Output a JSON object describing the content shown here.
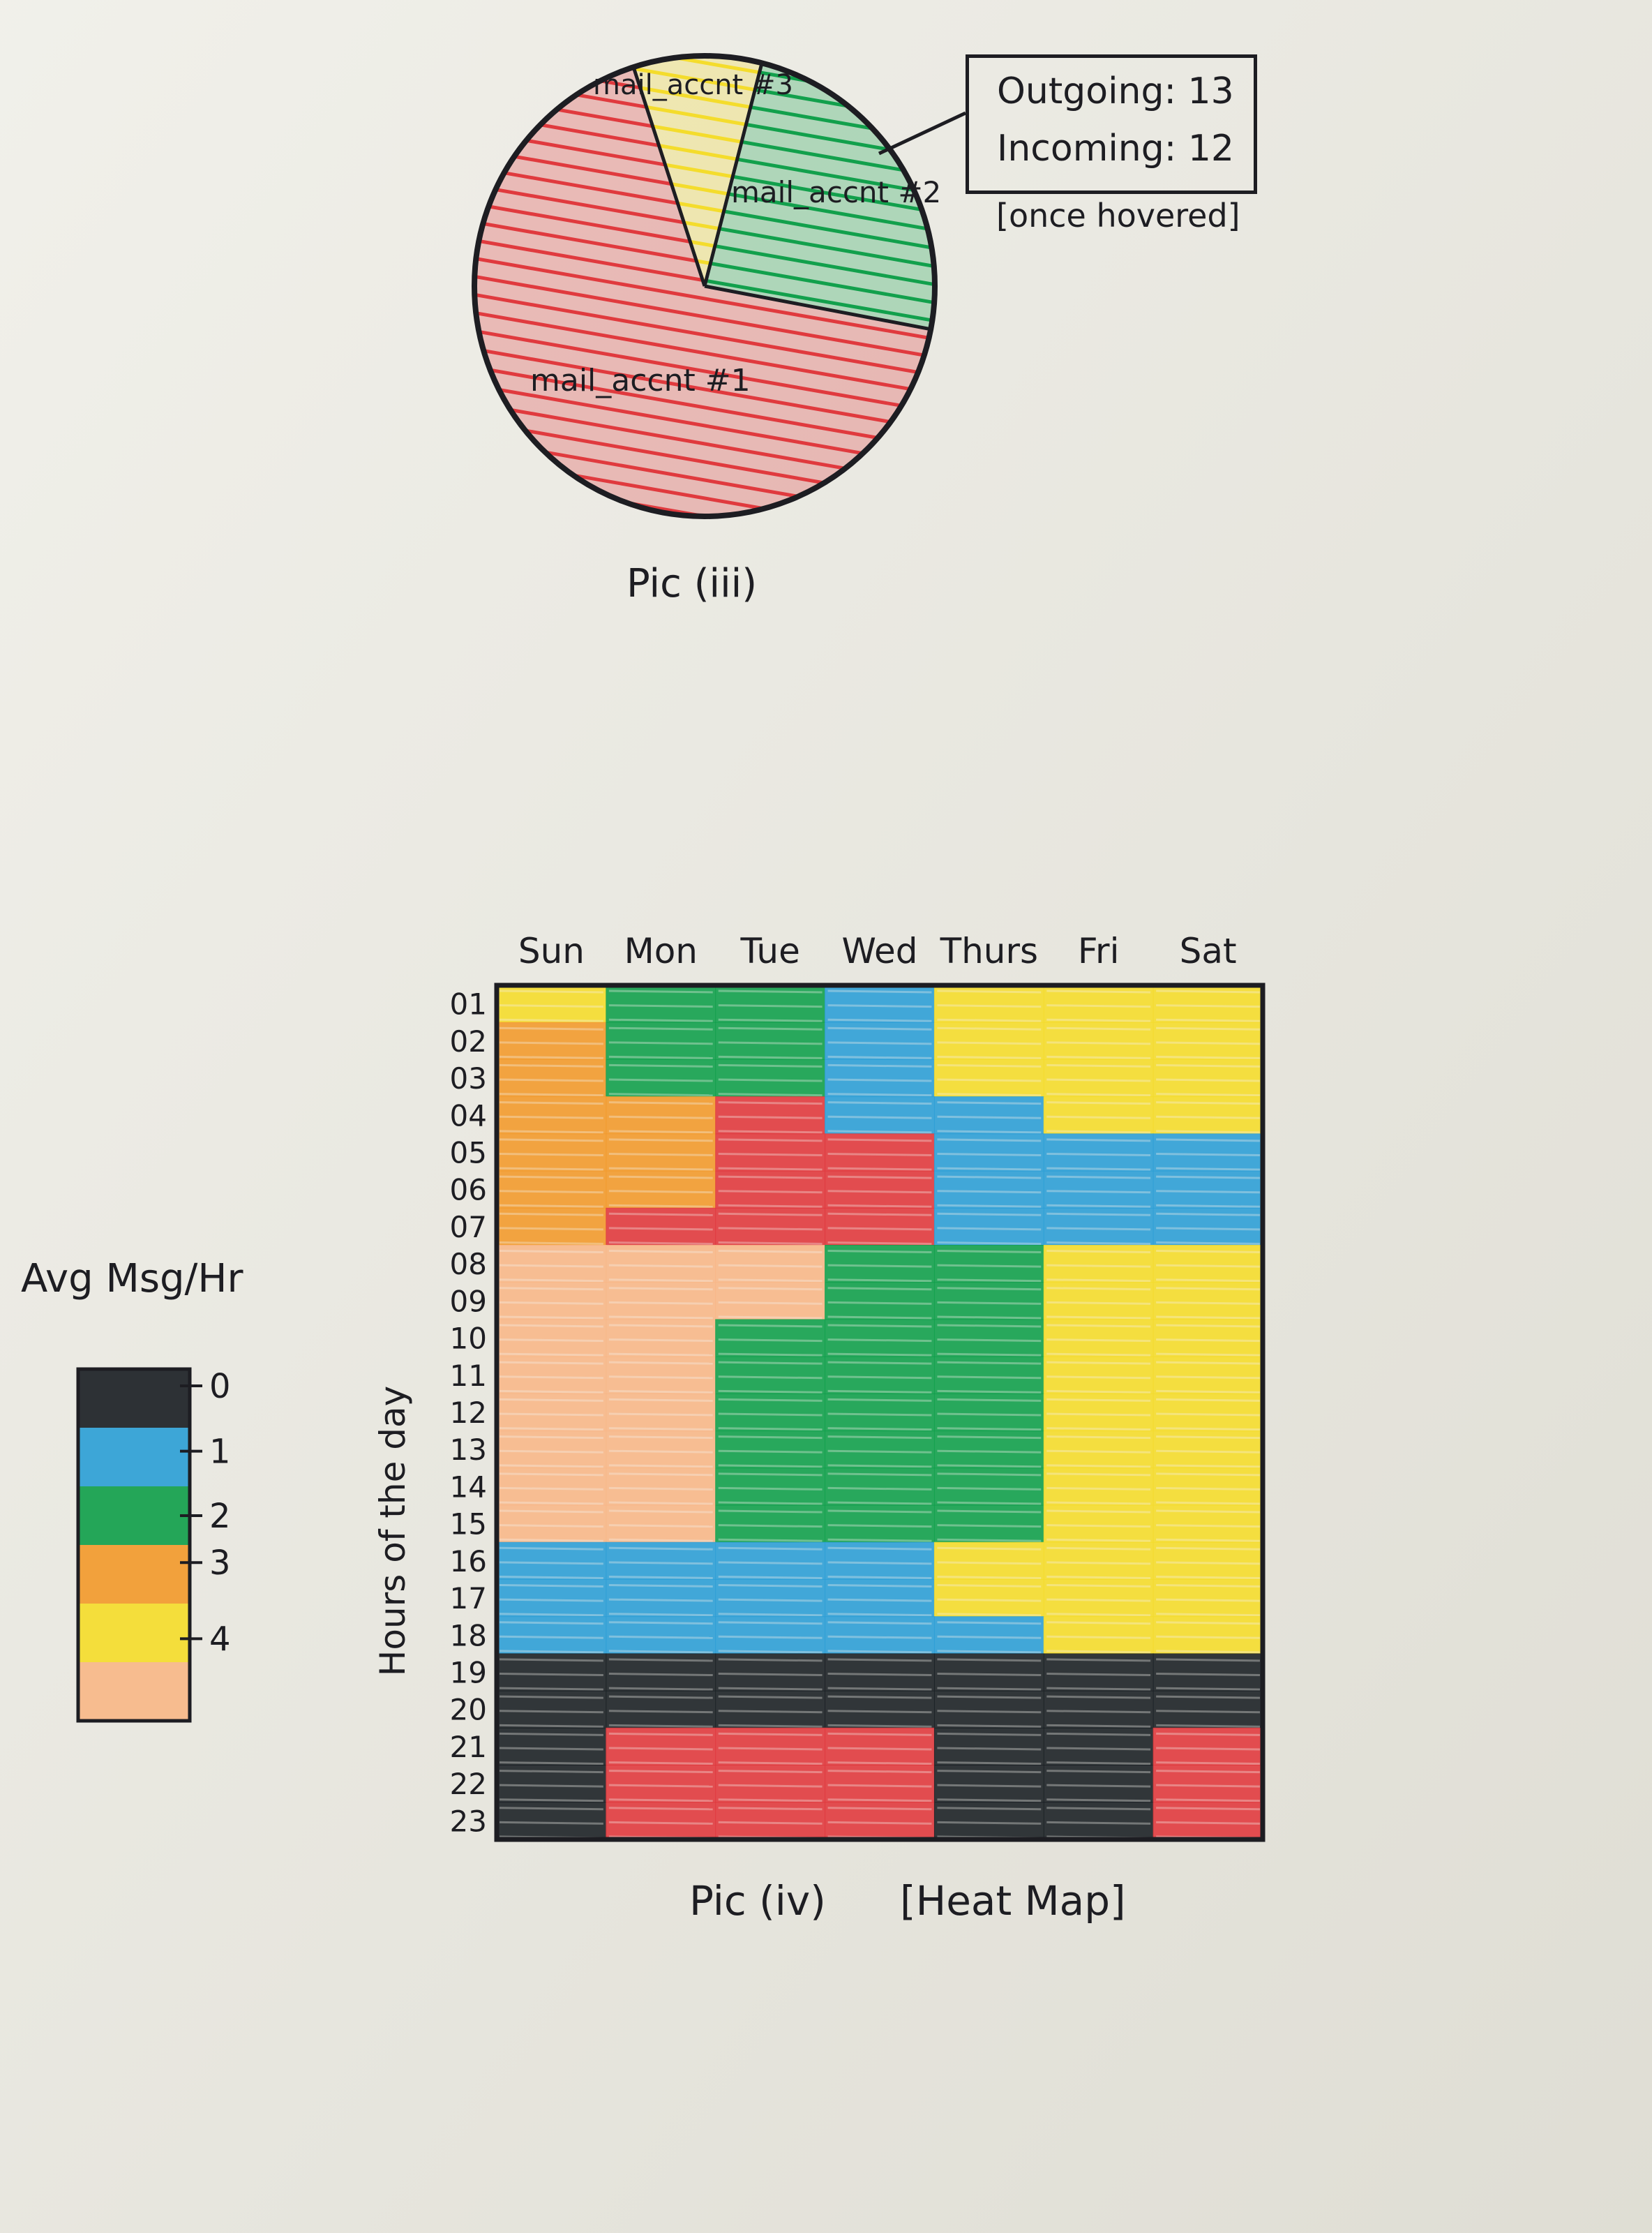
{
  "pie": {
    "caption": "Pic (iii)",
    "tooltip_outgoing": "Outgoing: 13",
    "tooltip_incoming": "Incoming: 12",
    "tooltip_note": "[once hovered]"
  },
  "heatmap": {
    "caption": "Pic (iv)",
    "tag": "[Heat Map]",
    "ylabel": "Hours of the day"
  },
  "legend": {
    "title": "Avg Msg/Hr"
  },
  "colors": {
    "level0": "#1c2126",
    "level1": "#2e9fd6",
    "level2": "#12a04c",
    "level3": "#f29a2e",
    "level4": "#f4dc2c",
    "level5": "#f7b788",
    "red": "#e03a3e",
    "ink": "#1d1d22",
    "paper": "#ecebe3"
  },
  "chart_data": [
    {
      "type": "pie",
      "slices": [
        {
          "label": "mail_accnt #1",
          "value": 0.67,
          "color": "#e03a3e"
        },
        {
          "label": "mail_accnt #2",
          "value": 0.24,
          "color": "#12a04c"
        },
        {
          "label": "mail_accnt #3",
          "value": 0.09,
          "color": "#f4dc2c"
        }
      ]
    },
    {
      "type": "heatmap",
      "ylabel": "Hours of the day",
      "x": [
        "Sun",
        "Mon",
        "Tue",
        "Wed",
        "Thurs",
        "Fri",
        "Sat"
      ],
      "y": [
        "01",
        "02",
        "03",
        "04",
        "05",
        "06",
        "07",
        "08",
        "09",
        "10",
        "11",
        "12",
        "13",
        "14",
        "15",
        "16",
        "17",
        "18",
        "19",
        "20",
        "21",
        "22",
        "23"
      ],
      "legend_title": "Avg Msg/Hr",
      "legend_ticks": [
        "0",
        "1",
        "2",
        "3",
        "4"
      ],
      "legend_scale": [
        "#1c2126",
        "#2e9fd6",
        "#12a04c",
        "#f29a2e",
        "#f4dc2c",
        "#f7b788"
      ],
      "values": [
        [
          "yellow",
          "green",
          "green",
          "blue",
          "yellow",
          "yellow",
          "yellow"
        ],
        [
          "orange",
          "green",
          "green",
          "blue",
          "yellow",
          "yellow",
          "yellow"
        ],
        [
          "orange",
          "green",
          "green",
          "blue",
          "yellow",
          "yellow",
          "yellow"
        ],
        [
          "orange",
          "orange",
          "red",
          "blue",
          "blue",
          "yellow",
          "yellow"
        ],
        [
          "orange",
          "orange",
          "red",
          "red",
          "blue",
          "blue",
          "blue"
        ],
        [
          "orange",
          "orange",
          "red",
          "red",
          "blue",
          "blue",
          "blue"
        ],
        [
          "orange",
          "red",
          "red",
          "red",
          "blue",
          "blue",
          "blue"
        ],
        [
          "peach",
          "peach",
          "peach",
          "green",
          "green",
          "yellow",
          "yellow"
        ],
        [
          "peach",
          "peach",
          "peach",
          "green",
          "green",
          "yellow",
          "yellow"
        ],
        [
          "peach",
          "peach",
          "green",
          "green",
          "green",
          "yellow",
          "yellow"
        ],
        [
          "peach",
          "peach",
          "green",
          "green",
          "green",
          "yellow",
          "yellow"
        ],
        [
          "peach",
          "peach",
          "green",
          "green",
          "green",
          "yellow",
          "yellow"
        ],
        [
          "peach",
          "peach",
          "green",
          "green",
          "green",
          "yellow",
          "yellow"
        ],
        [
          "peach",
          "peach",
          "green",
          "green",
          "green",
          "yellow",
          "yellow"
        ],
        [
          "peach",
          "peach",
          "green",
          "green",
          "green",
          "yellow",
          "yellow"
        ],
        [
          "blue",
          "blue",
          "blue",
          "blue",
          "yellow",
          "yellow",
          "yellow"
        ],
        [
          "blue",
          "blue",
          "blue",
          "blue",
          "yellow",
          "yellow",
          "yellow"
        ],
        [
          "blue",
          "blue",
          "blue",
          "blue",
          "blue",
          "yellow",
          "yellow"
        ],
        [
          "black",
          "black",
          "black",
          "black",
          "black",
          "black",
          "black"
        ],
        [
          "black",
          "black",
          "black",
          "black",
          "black",
          "black",
          "black"
        ],
        [
          "black",
          "red",
          "red",
          "red",
          "black",
          "black",
          "red"
        ],
        [
          "black",
          "red",
          "red",
          "red",
          "black",
          "black",
          "red"
        ],
        [
          "black",
          "red",
          "red",
          "red",
          "black",
          "black",
          "red"
        ]
      ]
    }
  ]
}
